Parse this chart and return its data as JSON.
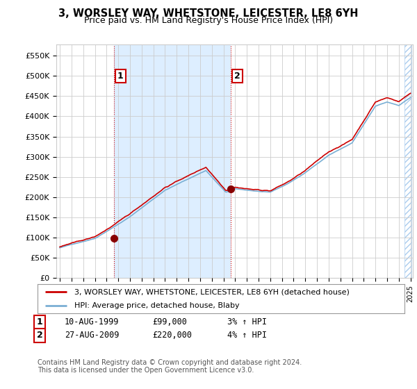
{
  "title": "3, WORSLEY WAY, WHETSTONE, LEICESTER, LE8 6YH",
  "subtitle": "Price paid vs. HM Land Registry's House Price Index (HPI)",
  "ylim": [
    0,
    577000
  ],
  "yticks": [
    0,
    50000,
    100000,
    150000,
    200000,
    250000,
    300000,
    350000,
    400000,
    450000,
    500000,
    550000
  ],
  "ytick_labels": [
    "£0",
    "£50K",
    "£100K",
    "£150K",
    "£200K",
    "£250K",
    "£300K",
    "£350K",
    "£400K",
    "£450K",
    "£500K",
    "£550K"
  ],
  "purchase1_date": 1999.61,
  "purchase1_price": 99000,
  "purchase2_date": 2009.65,
  "purchase2_price": 220000,
  "legend_line1": "3, WORSLEY WAY, WHETSTONE, LEICESTER, LE8 6YH (detached house)",
  "legend_line2": "HPI: Average price, detached house, Blaby",
  "annotation1_date": "10-AUG-1999",
  "annotation1_price": "£99,000",
  "annotation1_hpi": "3% ↑ HPI",
  "annotation2_date": "27-AUG-2009",
  "annotation2_price": "£220,000",
  "annotation2_hpi": "4% ↑ HPI",
  "footer": "Contains HM Land Registry data © Crown copyright and database right 2024.\nThis data is licensed under the Open Government Licence v3.0.",
  "line_color_red": "#cc0000",
  "line_color_blue": "#7aafd4",
  "shade_color": "#ddeeff",
  "grid_color": "#cccccc",
  "background_color": "#ffffff",
  "vline_color": "#cc0000",
  "xmin": 1995.0,
  "xmax": 2025.0
}
